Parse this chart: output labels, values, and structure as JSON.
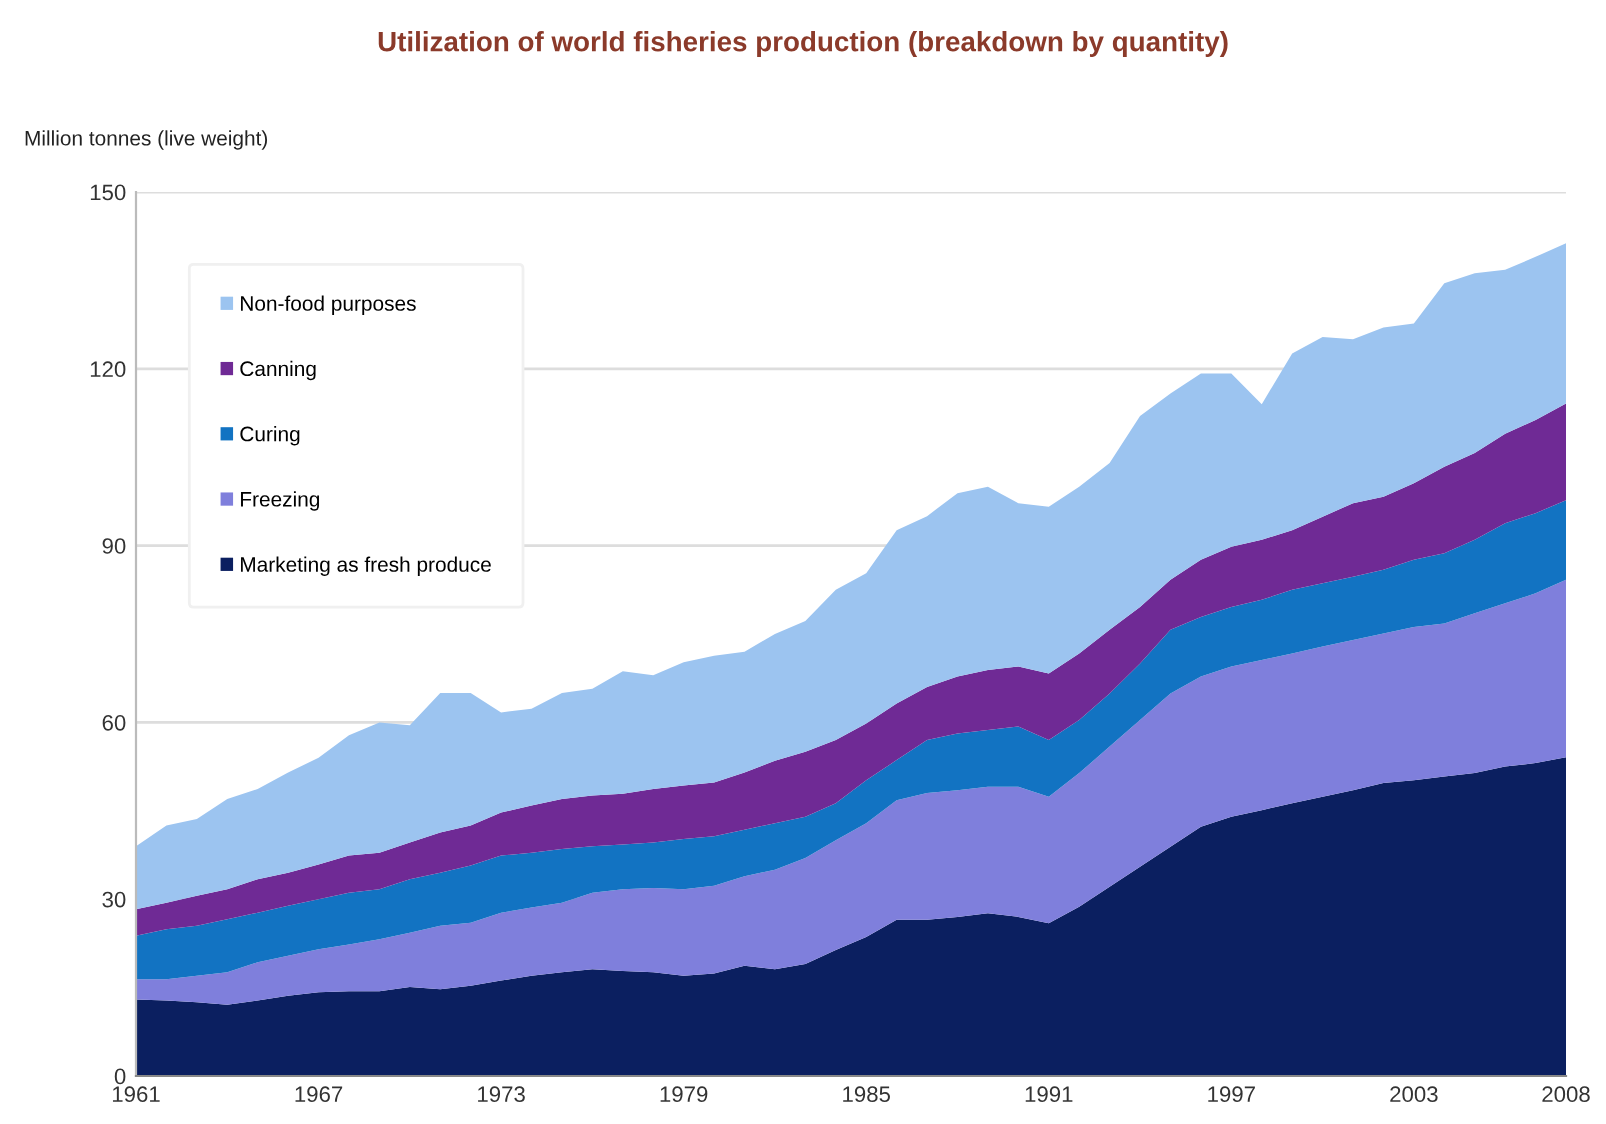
{
  "chart_data": {
    "type": "area",
    "stacked": true,
    "title": "Utilization of world fisheries production (breakdown by quantity)",
    "ylabel": "Million tonnes (live weight)",
    "x": [
      1961,
      1962,
      1963,
      1964,
      1965,
      1966,
      1967,
      1968,
      1969,
      1970,
      1971,
      1972,
      1973,
      1974,
      1975,
      1976,
      1977,
      1978,
      1979,
      1980,
      1981,
      1982,
      1983,
      1984,
      1985,
      1986,
      1987,
      1988,
      1989,
      1990,
      1991,
      1992,
      1993,
      1994,
      1995,
      1996,
      1997,
      1998,
      1999,
      2000,
      2001,
      2002,
      2003,
      2004,
      2005,
      2006,
      2007,
      2008
    ],
    "series": [
      {
        "name": "Marketing as fresh produce",
        "color": "#0b1f60",
        "values": [
          13,
          12.8,
          12.5,
          12.1,
          12.8,
          13.6,
          14.2,
          14.4,
          14.4,
          15.1,
          14.7,
          15.3,
          16.2,
          17,
          17.6,
          18.1,
          17.8,
          17.6,
          17,
          17.4,
          18.7,
          18.1,
          19,
          21.4,
          23.6,
          26.5,
          26.5,
          27,
          27.6,
          27,
          25.9,
          28.7,
          32.1,
          35.5,
          38.9,
          42.3,
          44,
          45.1,
          46.3,
          47.4,
          48.5,
          49.7,
          50.2,
          50.8,
          51.4,
          52.5,
          53.1,
          54.1
        ]
      },
      {
        "name": "Freezing",
        "color": "#7f7fdc",
        "values": [
          3.4,
          3.6,
          4.5,
          5.5,
          6.5,
          6.8,
          7.3,
          7.9,
          8.8,
          9.2,
          10.8,
          10.7,
          11.5,
          11.6,
          11.8,
          13,
          13.9,
          14.3,
          14.7,
          14.9,
          15.2,
          16.9,
          18,
          18.6,
          19.3,
          20.3,
          21.5,
          21.5,
          21.5,
          22.1,
          21.5,
          22.7,
          23.8,
          24.9,
          26,
          25.5,
          25.5,
          25.5,
          25.4,
          25.5,
          25.5,
          25.4,
          26,
          26,
          27.1,
          27.7,
          28.8,
          30.1
        ]
      },
      {
        "name": "Curing",
        "color": "#1273c2",
        "values": [
          7.4,
          8.5,
          8.5,
          9,
          8.4,
          8.5,
          8.5,
          8.8,
          8.5,
          9.1,
          9,
          9.7,
          9.7,
          9.3,
          9.1,
          7.9,
          7.6,
          7.7,
          8.5,
          8.4,
          7.9,
          7.9,
          7,
          6.3,
          7.3,
          6.8,
          9,
          9.6,
          9.6,
          10.2,
          9.6,
          9,
          9,
          9.6,
          10.8,
          10.1,
          10.1,
          10.2,
          10.8,
          10.7,
          10.7,
          10.8,
          11.4,
          11.9,
          12.5,
          13.6,
          13.6,
          13.5
        ]
      },
      {
        "name": "Canning",
        "color": "#6f2a95",
        "values": [
          4.5,
          4.5,
          5.1,
          5.1,
          5.7,
          5.6,
          5.9,
          6.3,
          6.2,
          6.2,
          6.8,
          6.8,
          7.3,
          8,
          8.5,
          8.6,
          8.6,
          9.1,
          9.1,
          9.1,
          9.7,
          10.6,
          11,
          10.7,
          9.6,
          9.6,
          9,
          9.7,
          10.2,
          10.2,
          11.3,
          11.3,
          10.8,
          9.6,
          8.5,
          9.7,
          10.2,
          10.2,
          10.1,
          11.3,
          12.5,
          12.4,
          13,
          14.7,
          14.7,
          15.2,
          15.8,
          16.4
        ]
      },
      {
        "name": "Non-food purposes",
        "color": "#9cc4f0",
        "values": [
          10.7,
          13.1,
          13,
          15.3,
          15.3,
          17,
          18.1,
          20.4,
          22.1,
          19.9,
          23.7,
          22.5,
          17,
          16.4,
          18,
          18.1,
          20.8,
          19.3,
          20.9,
          21.5,
          20.5,
          21.5,
          22.2,
          25.5,
          25.5,
          29.4,
          29,
          31.1,
          31.1,
          27.7,
          28.3,
          28.3,
          28.3,
          32.4,
          31.6,
          31.6,
          29.4,
          23,
          30,
          30.5,
          27.8,
          28.7,
          27.1,
          31.1,
          30.5,
          27.8,
          27.7,
          27.2
        ]
      }
    ],
    "xlim": [
      1961,
      2008
    ],
    "xticks": [
      1961,
      1967,
      1973,
      1979,
      1985,
      1991,
      1997,
      2003,
      2008
    ],
    "ylim": [
      0,
      150
    ],
    "yticks": [
      0,
      30,
      60,
      90,
      120,
      150
    ],
    "grid": "y",
    "legend": "top left"
  }
}
